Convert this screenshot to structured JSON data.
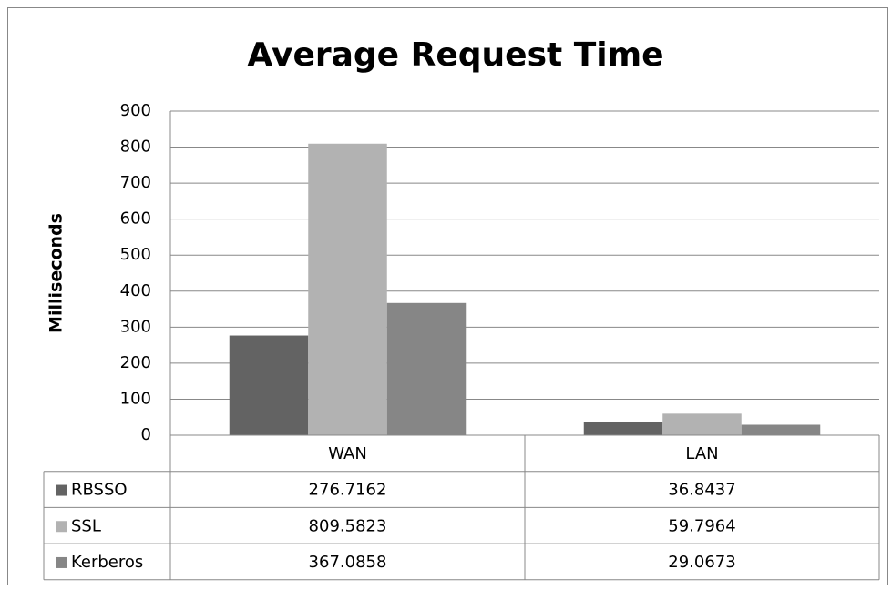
{
  "chart_data": {
    "type": "bar",
    "title": "Average Request Time",
    "y_label": "Milliseconds",
    "categories": [
      "WAN",
      "LAN"
    ],
    "series": [
      {
        "name": "RBSSO",
        "color": "#636363",
        "values": [
          276.7162,
          36.8437
        ]
      },
      {
        "name": "SSL",
        "color": "#b2b2b2",
        "values": [
          809.5823,
          59.7964
        ]
      },
      {
        "name": "Kerberos",
        "color": "#868686",
        "values": [
          367.0858,
          29.0673
        ]
      }
    ],
    "ylim": [
      0,
      900
    ],
    "yticks": [
      0,
      100,
      200,
      300,
      400,
      500,
      600,
      700,
      800,
      900
    ],
    "grid": true,
    "data_table": true
  }
}
